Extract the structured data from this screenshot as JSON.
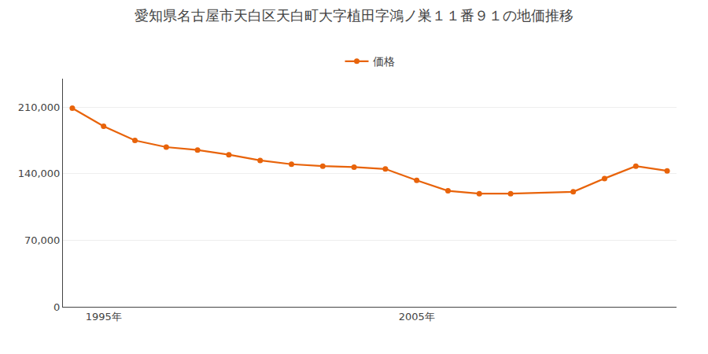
{
  "chart_data": {
    "type": "line",
    "title": "愛知県名古屋市天白区天白町大字植田字鴻ノ巣１１番９１の地価推移",
    "x": [
      1994,
      1995,
      1996,
      1997,
      1998,
      1999,
      2000,
      2001,
      2002,
      2003,
      2004,
      2005,
      2006,
      2007,
      2008,
      2010,
      2011,
      2012,
      2013
    ],
    "series": [
      {
        "name": "価格",
        "color": "#e8630a",
        "values": [
          209000,
          190000,
          175000,
          168000,
          165000,
          160000,
          154000,
          150000,
          148000,
          147000,
          145000,
          133000,
          122000,
          119000,
          119000,
          121000,
          135000,
          148000,
          143000
        ]
      }
    ],
    "xlim": [
      1993.7,
      2013.3
    ],
    "xticks": [
      {
        "value": 1995,
        "label": "1995年"
      },
      {
        "value": 2005,
        "label": "2005年"
      }
    ],
    "ylim": [
      0,
      240000
    ],
    "yticks": [
      0,
      {
        "value": 70000,
        "label": "70,000"
      },
      {
        "value": 140000,
        "label": "140,000"
      },
      {
        "value": 210000,
        "label": "210,000"
      }
    ],
    "grid": true,
    "legend": "top",
    "marker": "circle"
  }
}
